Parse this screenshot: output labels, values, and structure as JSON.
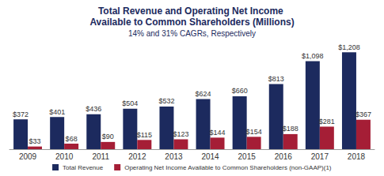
{
  "chart_data": {
    "type": "bar",
    "title": "Total Revenue and Operating Net Income Available to Common Shareholders (Millions)",
    "subtitle": "14% and 31% CAGRs, Respectively",
    "categories": [
      "2009",
      "2010",
      "2011",
      "2012",
      "2013",
      "2014",
      "2015",
      "2016",
      "2017",
      "2018"
    ],
    "series": [
      {
        "name": "Total Revenue",
        "color": "#1c2a5e",
        "values": [
          372,
          401,
          436,
          504,
          532,
          624,
          660,
          813,
          1098,
          1208
        ],
        "value_labels": [
          "$372",
          "$401",
          "$436",
          "$504",
          "$532",
          "$624",
          "$660",
          "$813",
          "$1,098",
          "$1,208"
        ]
      },
      {
        "name": "Operating Net Income Available to Common Shareholders (non-GAAP)(1)",
        "color": "#a51e36",
        "values": [
          33,
          68,
          90,
          115,
          123,
          144,
          154,
          188,
          281,
          367
        ],
        "value_labels": [
          "$33",
          "$68",
          "$90",
          "$115",
          "$123",
          "$144",
          "$154",
          "$188",
          "$281",
          "$367"
        ]
      }
    ],
    "ylim": [
      0,
      1250
    ],
    "grid": false,
    "legend": "bottom",
    "data_labels": true,
    "tick_labels": "x"
  }
}
